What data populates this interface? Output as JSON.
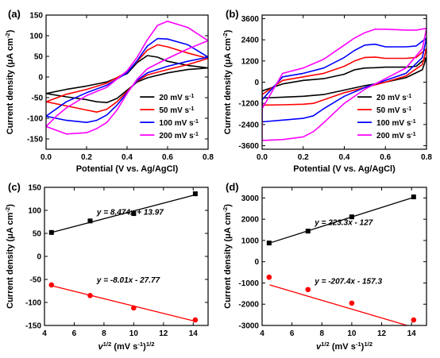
{
  "figure_id": "electrochemistry-cv-figure",
  "chart_data": [
    {
      "panel": "(a)",
      "type": "line",
      "xlabel": "Potential (V vs. Ag/AgCl)",
      "ylabel": "Current density (μA cm⁻²)",
      "xlim": [
        0.0,
        0.8
      ],
      "ylim": [
        -175,
        150
      ],
      "xticks": [
        "0.0",
        "0.2",
        "0.4",
        "0.6",
        "0.8"
      ],
      "yticks": [
        "-150",
        "-100",
        "-50",
        "0",
        "50",
        "100",
        "150"
      ],
      "legend_position": "lower-right",
      "series": [
        {
          "name": "20 mV s⁻¹",
          "color": "#000000",
          "forward": [
            [
              0.0,
              -40
            ],
            [
              0.1,
              -30
            ],
            [
              0.2,
              -22
            ],
            [
              0.3,
              -12
            ],
            [
              0.4,
              8
            ],
            [
              0.45,
              35
            ],
            [
              0.5,
              52
            ],
            [
              0.55,
              48
            ],
            [
              0.6,
              38
            ],
            [
              0.7,
              28
            ],
            [
              0.8,
              22
            ]
          ],
          "reverse": [
            [
              0.8,
              22
            ],
            [
              0.7,
              18
            ],
            [
              0.6,
              10
            ],
            [
              0.5,
              -2
            ],
            [
              0.45,
              -12
            ],
            [
              0.4,
              -32
            ],
            [
              0.35,
              -52
            ],
            [
              0.3,
              -62
            ],
            [
              0.25,
              -60
            ],
            [
              0.2,
              -55
            ],
            [
              0.1,
              -48
            ],
            [
              0.0,
              -40
            ]
          ]
        },
        {
          "name": "50 mV s⁻¹",
          "color": "#ff0000",
          "forward": [
            [
              0.0,
              -60
            ],
            [
              0.1,
              -42
            ],
            [
              0.2,
              -30
            ],
            [
              0.3,
              -15
            ],
            [
              0.4,
              12
            ],
            [
              0.45,
              38
            ],
            [
              0.5,
              65
            ],
            [
              0.55,
              78
            ],
            [
              0.6,
              73
            ],
            [
              0.7,
              58
            ],
            [
              0.8,
              45
            ]
          ],
          "reverse": [
            [
              0.8,
              45
            ],
            [
              0.7,
              30
            ],
            [
              0.6,
              18
            ],
            [
              0.5,
              5
            ],
            [
              0.45,
              -10
            ],
            [
              0.4,
              -35
            ],
            [
              0.35,
              -60
            ],
            [
              0.3,
              -78
            ],
            [
              0.25,
              -85
            ],
            [
              0.2,
              -80
            ],
            [
              0.1,
              -70
            ],
            [
              0.0,
              -60
            ]
          ]
        },
        {
          "name": "100 mV s⁻¹",
          "color": "#0000ff",
          "forward": [
            [
              0.0,
              -95
            ],
            [
              0.1,
              -60
            ],
            [
              0.2,
              -38
            ],
            [
              0.3,
              -20
            ],
            [
              0.4,
              10
            ],
            [
              0.45,
              40
            ],
            [
              0.5,
              75
            ],
            [
              0.55,
              93
            ],
            [
              0.6,
              92
            ],
            [
              0.7,
              78
            ],
            [
              0.8,
              48
            ]
          ],
          "reverse": [
            [
              0.8,
              48
            ],
            [
              0.7,
              38
            ],
            [
              0.6,
              26
            ],
            [
              0.5,
              10
            ],
            [
              0.45,
              -8
            ],
            [
              0.4,
              -38
            ],
            [
              0.35,
              -68
            ],
            [
              0.3,
              -92
            ],
            [
              0.25,
              -105
            ],
            [
              0.2,
              -110
            ],
            [
              0.1,
              -105
            ],
            [
              0.0,
              -95
            ]
          ]
        },
        {
          "name": "200 mV s⁻¹",
          "color": "#ff00ff",
          "forward": [
            [
              0.0,
              -120
            ],
            [
              0.05,
              -95
            ],
            [
              0.1,
              -75
            ],
            [
              0.2,
              -45
            ],
            [
              0.3,
              -25
            ],
            [
              0.4,
              15
            ],
            [
              0.45,
              48
            ],
            [
              0.5,
              90
            ],
            [
              0.55,
              125
            ],
            [
              0.6,
              135
            ],
            [
              0.7,
              120
            ],
            [
              0.8,
              88
            ]
          ],
          "reverse": [
            [
              0.8,
              88
            ],
            [
              0.7,
              68
            ],
            [
              0.6,
              45
            ],
            [
              0.5,
              20
            ],
            [
              0.45,
              -5
            ],
            [
              0.4,
              -40
            ],
            [
              0.35,
              -80
            ],
            [
              0.3,
              -110
            ],
            [
              0.25,
              -125
            ],
            [
              0.2,
              -135
            ],
            [
              0.1,
              -138
            ],
            [
              0.0,
              -120
            ]
          ]
        }
      ]
    },
    {
      "panel": "(b)",
      "type": "line",
      "xlabel": "Potential (V vs. Ag/AgCl)",
      "ylabel": "Current density (μA cm⁻²)",
      "xlim": [
        0.0,
        0.8
      ],
      "ylim": [
        -3800,
        3800
      ],
      "xticks": [
        "0.0",
        "0.2",
        "0.4",
        "0.6",
        "0.8"
      ],
      "yticks": [
        "-3600",
        "-2400",
        "-1200",
        "0",
        "1200",
        "2400",
        "3600"
      ],
      "legend_position": "lower-right",
      "series": [
        {
          "name": "20 mV s⁻¹",
          "color": "#000000",
          "forward": [
            [
              0.0,
              -500
            ],
            [
              0.1,
              -100
            ],
            [
              0.2,
              100
            ],
            [
              0.3,
              200
            ],
            [
              0.4,
              450
            ],
            [
              0.45,
              700
            ],
            [
              0.5,
              800
            ],
            [
              0.55,
              820
            ],
            [
              0.6,
              850
            ],
            [
              0.7,
              850
            ],
            [
              0.75,
              900
            ],
            [
              0.8,
              1400
            ]
          ],
          "reverse": [
            [
              0.8,
              1400
            ],
            [
              0.78,
              700
            ],
            [
              0.7,
              250
            ],
            [
              0.6,
              0
            ],
            [
              0.5,
              -200
            ],
            [
              0.4,
              -450
            ],
            [
              0.3,
              -700
            ],
            [
              0.2,
              -800
            ],
            [
              0.1,
              -850
            ],
            [
              0.0,
              -900
            ]
          ]
        },
        {
          "name": "50 mV s⁻¹",
          "color": "#ff0000",
          "forward": [
            [
              0.0,
              -700
            ],
            [
              0.1,
              100
            ],
            [
              0.2,
              300
            ],
            [
              0.3,
              500
            ],
            [
              0.4,
              900
            ],
            [
              0.45,
              1200
            ],
            [
              0.5,
              1400
            ],
            [
              0.55,
              1420
            ],
            [
              0.6,
              1350
            ],
            [
              0.7,
              1350
            ],
            [
              0.75,
              1400
            ],
            [
              0.8,
              1900
            ]
          ],
          "reverse": [
            [
              0.8,
              1900
            ],
            [
              0.78,
              1000
            ],
            [
              0.7,
              350
            ],
            [
              0.6,
              0
            ],
            [
              0.5,
              -300
            ],
            [
              0.4,
              -600
            ],
            [
              0.3,
              -1000
            ],
            [
              0.25,
              -1200
            ],
            [
              0.2,
              -1250
            ],
            [
              0.1,
              -1280
            ],
            [
              0.0,
              -1300
            ]
          ]
        },
        {
          "name": "100 mV s⁻¹",
          "color": "#0000ff",
          "forward": [
            [
              0.0,
              -1000
            ],
            [
              0.1,
              300
            ],
            [
              0.2,
              500
            ],
            [
              0.3,
              800
            ],
            [
              0.4,
              1400
            ],
            [
              0.45,
              1800
            ],
            [
              0.5,
              2100
            ],
            [
              0.55,
              2150
            ],
            [
              0.6,
              2000
            ],
            [
              0.7,
              2000
            ],
            [
              0.75,
              2050
            ],
            [
              0.8,
              2500
            ]
          ],
          "reverse": [
            [
              0.8,
              2500
            ],
            [
              0.78,
              1400
            ],
            [
              0.7,
              500
            ],
            [
              0.6,
              100
            ],
            [
              0.5,
              -300
            ],
            [
              0.4,
              -800
            ],
            [
              0.3,
              -1500
            ],
            [
              0.25,
              -1900
            ],
            [
              0.2,
              -2050
            ],
            [
              0.1,
              -2150
            ],
            [
              0.0,
              -2250
            ]
          ]
        },
        {
          "name": "200 mV s⁻¹",
          "color": "#ff00ff",
          "forward": [
            [
              0.0,
              -1500
            ],
            [
              0.1,
              500
            ],
            [
              0.2,
              800
            ],
            [
              0.3,
              1300
            ],
            [
              0.4,
              2100
            ],
            [
              0.45,
              2500
            ],
            [
              0.5,
              2800
            ],
            [
              0.55,
              3000
            ],
            [
              0.6,
              3000
            ],
            [
              0.7,
              2950
            ],
            [
              0.75,
              2950
            ],
            [
              0.8,
              3050
            ]
          ],
          "reverse": [
            [
              0.8,
              3050
            ],
            [
              0.78,
              1900
            ],
            [
              0.7,
              800
            ],
            [
              0.6,
              200
            ],
            [
              0.5,
              -400
            ],
            [
              0.4,
              -1200
            ],
            [
              0.3,
              -2300
            ],
            [
              0.25,
              -2800
            ],
            [
              0.2,
              -3100
            ],
            [
              0.1,
              -3250
            ],
            [
              0.0,
              -3300
            ]
          ]
        }
      ]
    },
    {
      "panel": "(c)",
      "type": "scatter",
      "xlabel": "v^1/2 (mV s^-1)^1/2",
      "ylabel": "Current density (μA cm⁻²)",
      "xlim": [
        4,
        15
      ],
      "ylim": [
        -150,
        150
      ],
      "xticks": [
        "4",
        "6",
        "8",
        "10",
        "12",
        "14"
      ],
      "yticks": [
        "-150",
        "-100",
        "-50",
        "0",
        "50",
        "100",
        "150"
      ],
      "series": [
        {
          "color": "#000000",
          "marker": "square",
          "x": [
            4.47,
            7.07,
            10.0,
            14.14
          ],
          "y": [
            52,
            77,
            93,
            136
          ],
          "fit": {
            "slope": 8.474,
            "intercept": 13.97,
            "label": "y = 8.474x +  13.97"
          }
        },
        {
          "color": "#ff0000",
          "marker": "circle",
          "x": [
            4.47,
            7.07,
            10.0,
            14.14
          ],
          "y": [
            -62,
            -85,
            -112,
            -138
          ],
          "fit": {
            "slope": -8.01,
            "intercept": -27.77,
            "label": "y = -8.01x -  27.77"
          }
        }
      ]
    },
    {
      "panel": "(d)",
      "type": "scatter",
      "xlabel": "v^1/2 (mV s^-1)^1/2",
      "ylabel": "Current density (μA cm⁻²)",
      "xlim": [
        4,
        15
      ],
      "ylim": [
        -3000,
        3500
      ],
      "xticks": [
        "4",
        "6",
        "8",
        "10",
        "12",
        "14"
      ],
      "yticks": [
        "-3000",
        "-2000",
        "-1000",
        "0",
        "1000",
        "2000",
        "3000"
      ],
      "series": [
        {
          "color": "#000000",
          "marker": "square",
          "x": [
            4.47,
            7.07,
            10.0,
            14.14
          ],
          "y": [
            880,
            1440,
            2110,
            3050
          ],
          "fit": {
            "slope": 223.3,
            "intercept": -127,
            "label": "y = 223.3x -  127"
          }
        },
        {
          "color": "#ff0000",
          "marker": "circle",
          "x": [
            4.47,
            7.07,
            10.0,
            14.14
          ],
          "y": [
            -730,
            -1310,
            -1950,
            -2740
          ],
          "fit": {
            "slope": -207.4,
            "intercept": -157.3,
            "label": "y = -207.4x -  157.3"
          }
        }
      ]
    }
  ]
}
